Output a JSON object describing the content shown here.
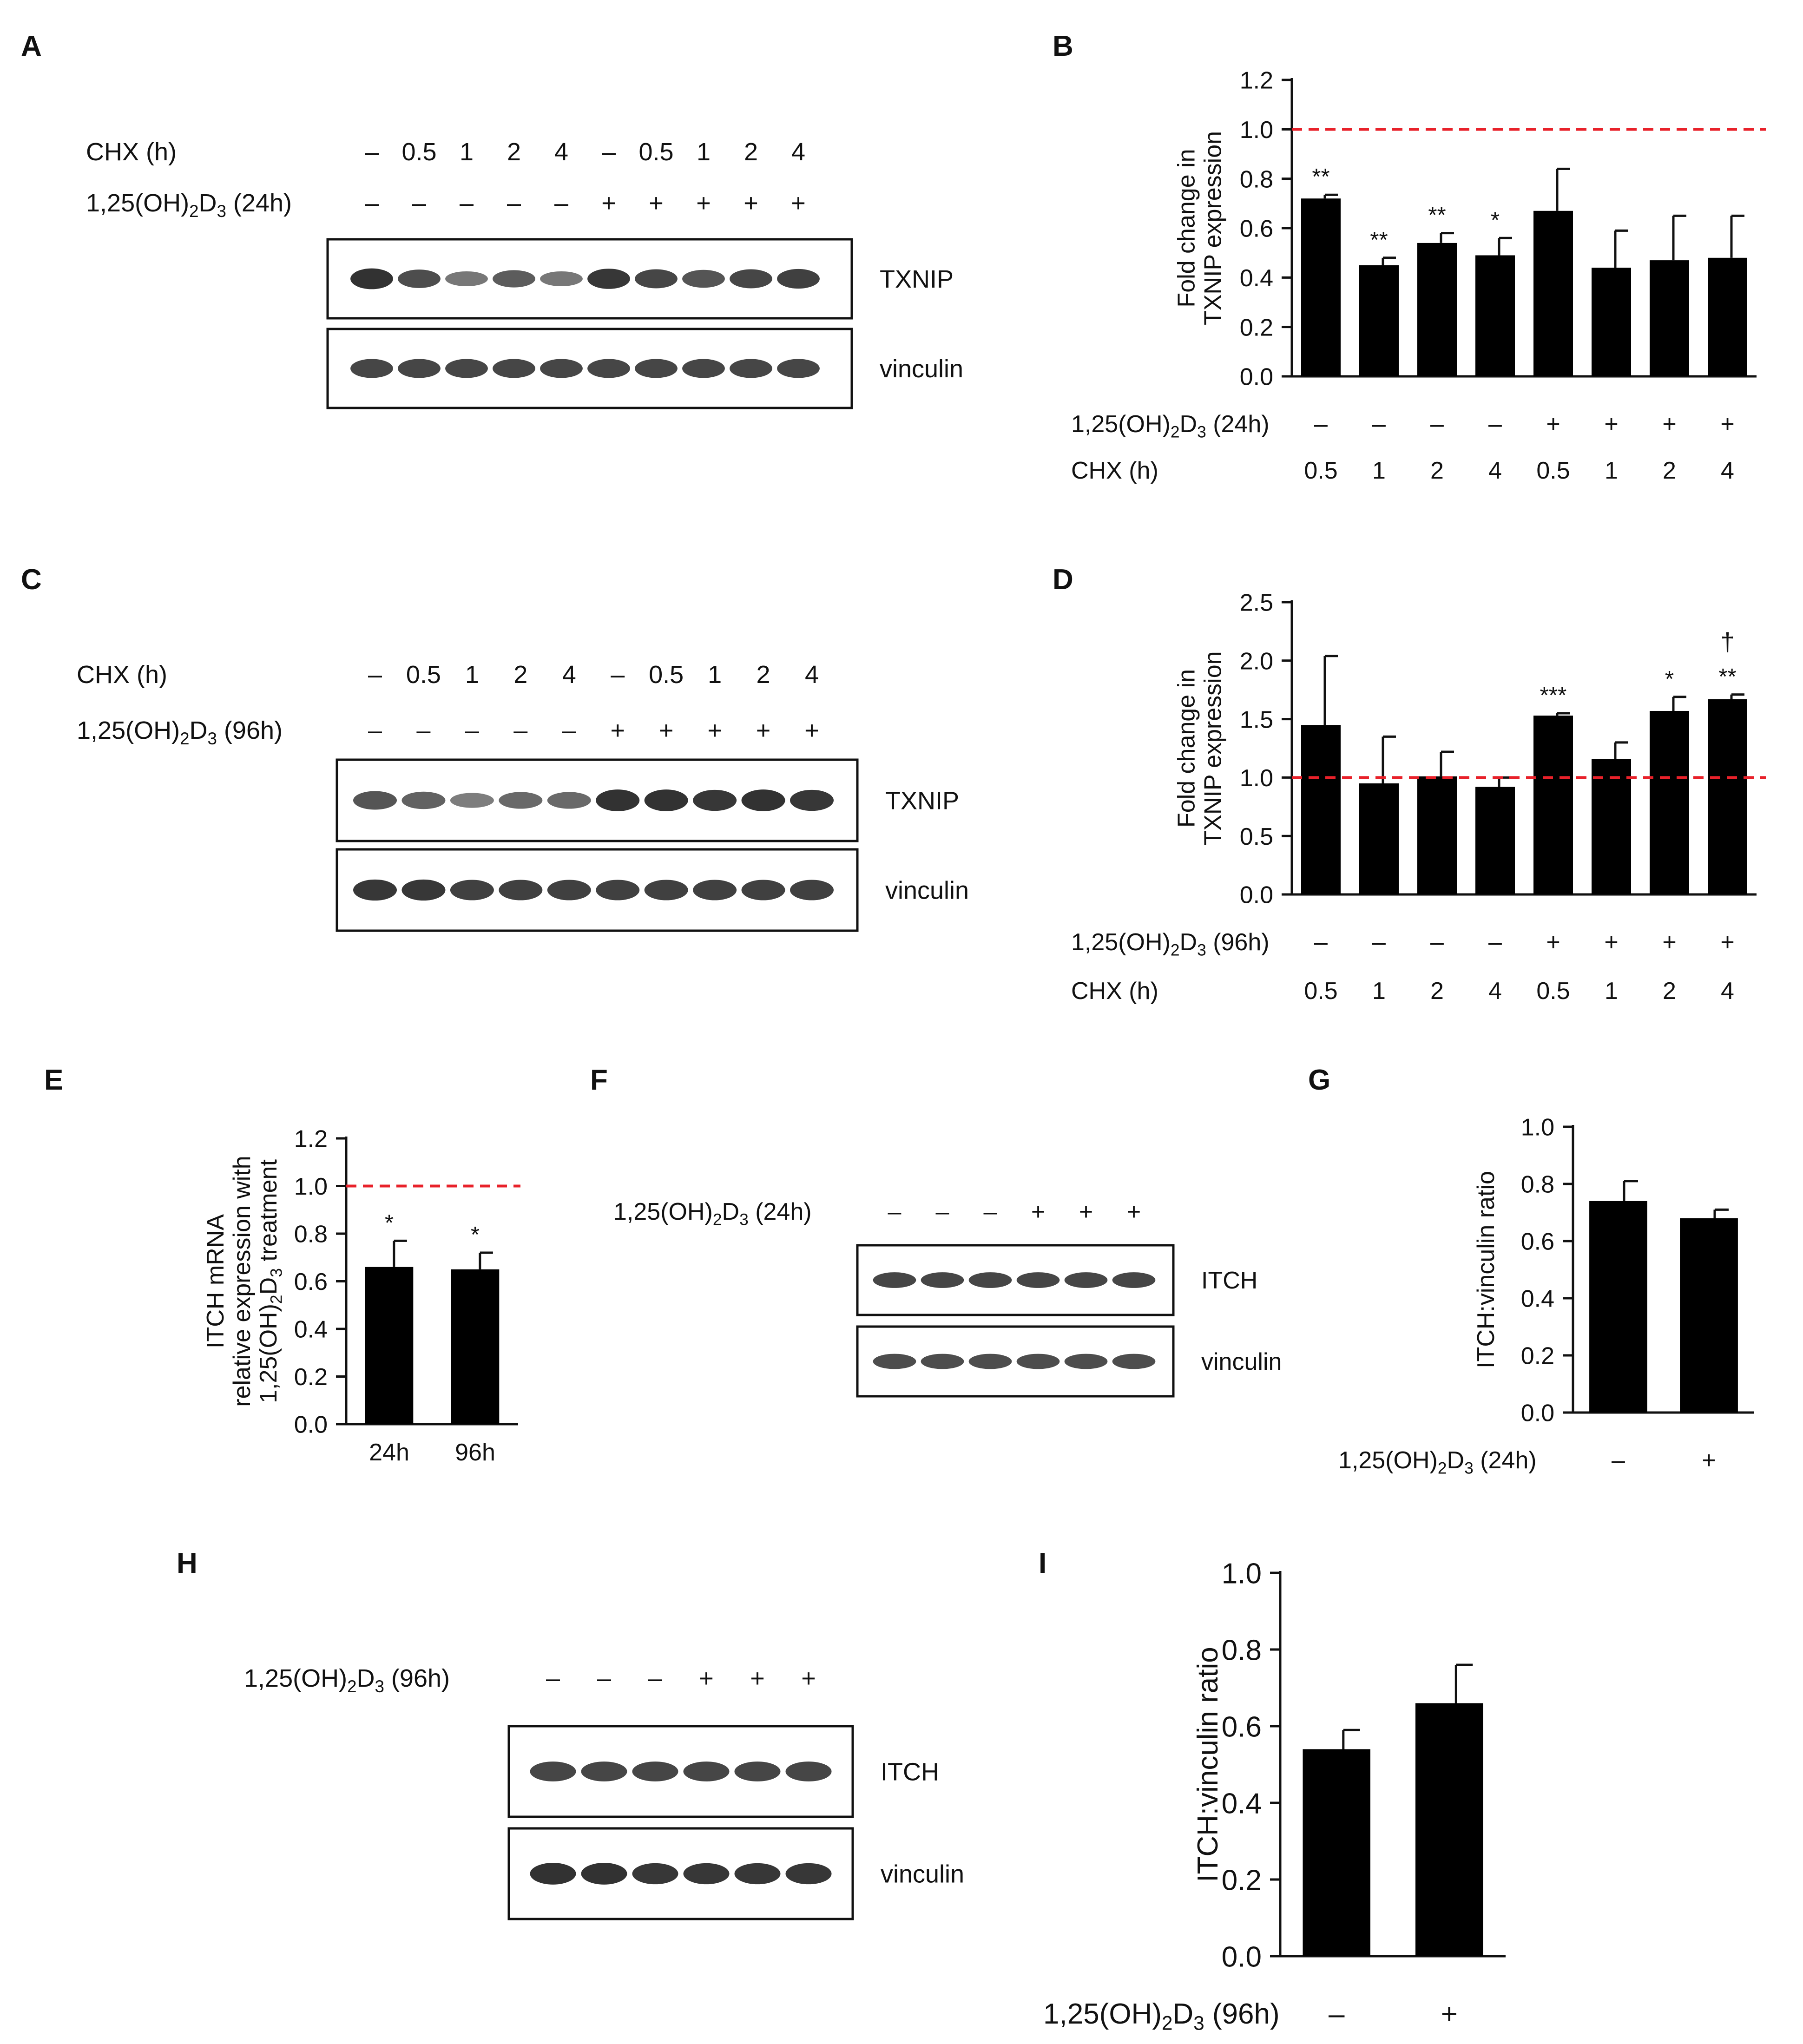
{
  "panels": [
    "A",
    "B",
    "C",
    "D",
    "E",
    "F",
    "G",
    "H",
    "I"
  ],
  "dash": "–",
  "plus": "+",
  "colors": {
    "bar": "#000000",
    "reference_line": "#e8212a",
    "band": "#2b2b2b"
  },
  "blot_A": {
    "cond_label": "CHX (h)",
    "treat_label": "1,25(OH)2D3 (24h)",
    "chx": [
      "–",
      "0.5",
      "1",
      "2",
      "4",
      "–",
      "0.5",
      "1",
      "2",
      "4"
    ],
    "treat": [
      "–",
      "–",
      "–",
      "–",
      "–",
      "+",
      "+",
      "+",
      "+",
      "+"
    ],
    "rows": [
      "TXNIP",
      "vinculin"
    ],
    "intensity": [
      [
        0.95,
        0.75,
        0.45,
        0.65,
        0.45,
        0.9,
        0.8,
        0.7,
        0.8,
        0.85
      ],
      [
        0.8,
        0.8,
        0.8,
        0.8,
        0.8,
        0.8,
        0.8,
        0.8,
        0.8,
        0.8
      ]
    ]
  },
  "blot_C": {
    "cond_label": "CHX (h)",
    "treat_label": "1,25(OH)2D3 (96h)",
    "chx": [
      "–",
      "0.5",
      "1",
      "2",
      "4",
      "–",
      "0.5",
      "1",
      "2",
      "4"
    ],
    "treat": [
      "–",
      "–",
      "–",
      "–",
      "–",
      "+",
      "+",
      "+",
      "+",
      "+"
    ],
    "rows": [
      "TXNIP",
      "vinculin"
    ],
    "intensity": [
      [
        0.7,
        0.6,
        0.4,
        0.55,
        0.55,
        0.95,
        0.95,
        0.9,
        0.95,
        0.9
      ],
      [
        0.9,
        0.9,
        0.85,
        0.85,
        0.85,
        0.85,
        0.85,
        0.85,
        0.85,
        0.85
      ]
    ]
  },
  "blot_F": {
    "treat_label": "1,25(OH)2D3 (24h)",
    "treat": [
      "–",
      "–",
      "–",
      "+",
      "+",
      "+"
    ],
    "rows": [
      "ITCH",
      "vinculin"
    ],
    "intensity": [
      [
        0.8,
        0.8,
        0.8,
        0.8,
        0.8,
        0.8
      ],
      [
        0.75,
        0.75,
        0.75,
        0.75,
        0.75,
        0.75
      ]
    ]
  },
  "blot_H": {
    "treat_label": "1,25(OH)2D3 (96h)",
    "treat": [
      "–",
      "–",
      "–",
      "+",
      "+",
      "+"
    ],
    "rows": [
      "ITCH",
      "vinculin"
    ],
    "intensity": [
      [
        0.8,
        0.8,
        0.8,
        0.8,
        0.8,
        0.8
      ],
      [
        0.95,
        0.95,
        0.9,
        0.9,
        0.9,
        0.9
      ]
    ]
  },
  "chart_data": [
    {
      "id": "B",
      "type": "bar",
      "ylabel": [
        "Fold change in",
        "TXNIP expression"
      ],
      "ylim": [
        0,
        1.2
      ],
      "yticks": [
        "0.0",
        "0.2",
        "0.4",
        "0.6",
        "0.8",
        "1.0",
        "1.2"
      ],
      "ref_line": 1.0,
      "row1_label": "1,25(OH)2D3 (24h)",
      "row1": [
        "–",
        "–",
        "–",
        "–",
        "+",
        "+",
        "+",
        "+"
      ],
      "row2_label": "CHX (h)",
      "categories": [
        "0.5",
        "1",
        "2",
        "4",
        "0.5",
        "1",
        "2",
        "4"
      ],
      "values": [
        0.72,
        0.45,
        0.54,
        0.49,
        0.67,
        0.44,
        0.47,
        0.48
      ],
      "errors": [
        0.015,
        0.03,
        0.04,
        0.07,
        0.17,
        0.15,
        0.18,
        0.17
      ],
      "sig": [
        "**",
        "**",
        "**",
        "*",
        "",
        "",
        "",
        ""
      ]
    },
    {
      "id": "D",
      "type": "bar",
      "ylabel": [
        "Fold change in",
        "TXNIP expression"
      ],
      "ylim": [
        0,
        2.5
      ],
      "yticks": [
        "0.0",
        "0.5",
        "1.0",
        "1.5",
        "2.0",
        "2.5"
      ],
      "ref_line": 1.0,
      "row1_label": "1,25(OH)2D3 (96h)",
      "row1": [
        "–",
        "–",
        "–",
        "–",
        "+",
        "+",
        "+",
        "+"
      ],
      "row2_label": "CHX (h)",
      "categories": [
        "0.5",
        "1",
        "2",
        "4",
        "0.5",
        "1",
        "2",
        "4"
      ],
      "values": [
        1.45,
        0.95,
        1.01,
        0.92,
        1.53,
        1.16,
        1.57,
        1.67
      ],
      "errors": [
        0.59,
        0.4,
        0.21,
        0.08,
        0.02,
        0.14,
        0.12,
        0.04
      ],
      "sig": [
        "",
        "",
        "",
        "",
        "***",
        "",
        "*",
        "**"
      ],
      "sig2": [
        "",
        "",
        "",
        "",
        "",
        "",
        "",
        "†"
      ]
    },
    {
      "id": "E",
      "type": "bar",
      "ylabel": [
        "ITCH mRNA",
        "relative expression with",
        "1,25(OH)2D3 treatment"
      ],
      "ylim": [
        0,
        1.2
      ],
      "yticks": [
        "0.0",
        "0.2",
        "0.4",
        "0.6",
        "0.8",
        "1.0",
        "1.2"
      ],
      "ref_line": 1.0,
      "categories": [
        "24h",
        "96h"
      ],
      "values": [
        0.66,
        0.65
      ],
      "errors": [
        0.11,
        0.07
      ],
      "sig": [
        "*",
        "*"
      ]
    },
    {
      "id": "G",
      "type": "bar",
      "ylabel": [
        "ITCH:vinculin ratio"
      ],
      "ylim": [
        0,
        1.0
      ],
      "yticks": [
        "0.0",
        "0.2",
        "0.4",
        "0.6",
        "0.8",
        "1.0"
      ],
      "row1_label": "1,25(OH)2D3 (24h)",
      "categories": [
        "–",
        "+"
      ],
      "values": [
        0.74,
        0.68
      ],
      "errors": [
        0.07,
        0.03
      ]
    },
    {
      "id": "I",
      "type": "bar",
      "ylabel": [
        "ITCH:vinculin ratio"
      ],
      "ylim": [
        0,
        1.0
      ],
      "yticks": [
        "0.0",
        "0.2",
        "0.4",
        "0.6",
        "0.8",
        "1.0"
      ],
      "row1_label": "1,25(OH)2D3 (96h)",
      "categories": [
        "–",
        "+"
      ],
      "values": [
        0.54,
        0.66
      ],
      "errors": [
        0.05,
        0.1
      ]
    }
  ]
}
